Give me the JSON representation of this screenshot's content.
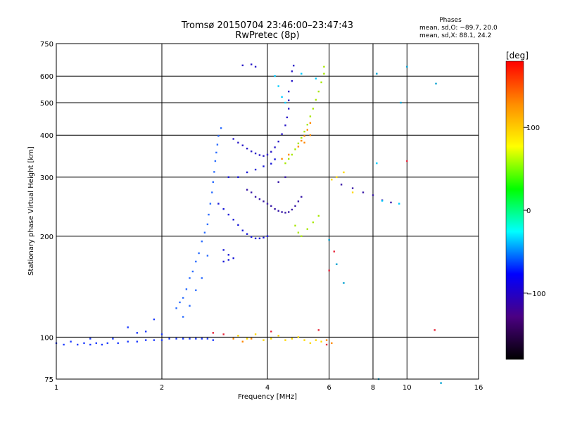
{
  "chart_data": {
    "type": "scatter",
    "title": "Tromsø 20150704 23:46:00–23:47:43",
    "subtitle": "RwPretec (8p)",
    "xlabel": "Frequency [MHz]",
    "ylabel": "Stationary phase Virtual Height [km]",
    "x_scale": "log",
    "y_scale": "log",
    "xlim": [
      1,
      16
    ],
    "ylim": [
      75,
      750
    ],
    "x_ticks": [
      1,
      2,
      4,
      6,
      8,
      10,
      16
    ],
    "y_ticks": [
      75,
      100,
      200,
      300,
      400,
      500,
      600,
      750
    ],
    "x_ticks_labels": [
      "1",
      "2",
      "4",
      "6",
      "8",
      "10",
      "16"
    ],
    "y_ticks_labels": [
      "75",
      "100",
      "200",
      "300",
      "400",
      "500",
      "600",
      "750"
    ],
    "grid": true,
    "stats": {
      "heading": "Phases",
      "line1": "mean, sd,O: −89.7, 20.0",
      "line2": "mean, sd,X:  88.1, 24.2"
    },
    "colorbar": {
      "label": "[deg]",
      "range": [
        -180,
        180
      ],
      "ticks": [
        100,
        0,
        -100
      ],
      "tick_labels": [
        "100",
        "0",
        "−100"
      ],
      "colors": [
        "#ff0000",
        "#ff8c00",
        "#ffff00",
        "#00ff00",
        "#00ffff",
        "#0000ff",
        "#4b0082",
        "#000000"
      ]
    },
    "series": [
      {
        "color": "#1e3cff",
        "points": [
          [
            1.0,
            96
          ],
          [
            1.05,
            95
          ],
          [
            1.1,
            97
          ],
          [
            1.15,
            95
          ],
          [
            1.2,
            96
          ],
          [
            1.25,
            95
          ],
          [
            1.3,
            96
          ],
          [
            1.35,
            95
          ],
          [
            1.4,
            96
          ],
          [
            1.5,
            96
          ],
          [
            1.6,
            97
          ],
          [
            1.7,
            97
          ],
          [
            1.8,
            98
          ],
          [
            1.9,
            98
          ],
          [
            2.0,
            98
          ],
          [
            2.1,
            99
          ],
          [
            2.2,
            99
          ],
          [
            2.3,
            99
          ],
          [
            2.4,
            99
          ],
          [
            2.5,
            99
          ],
          [
            2.6,
            99
          ],
          [
            2.7,
            99
          ],
          [
            2.8,
            98
          ],
          [
            1.25,
            99
          ],
          [
            1.45,
            99
          ],
          [
            1.6,
            107
          ],
          [
            1.7,
            103
          ],
          [
            1.8,
            104
          ],
          [
            1.9,
            113
          ],
          [
            2.0,
            102
          ]
        ]
      },
      {
        "color": "#2a6cff",
        "points": [
          [
            2.2,
            122
          ],
          [
            2.25,
            127
          ],
          [
            2.3,
            131
          ],
          [
            2.35,
            139
          ],
          [
            2.4,
            150
          ],
          [
            2.45,
            157
          ],
          [
            2.5,
            168
          ],
          [
            2.55,
            178
          ],
          [
            2.6,
            193
          ],
          [
            2.65,
            205
          ],
          [
            2.7,
            217
          ],
          [
            2.72,
            232
          ],
          [
            2.75,
            250
          ],
          [
            2.78,
            270
          ],
          [
            2.8,
            290
          ],
          [
            2.82,
            311
          ],
          [
            2.84,
            335
          ],
          [
            2.86,
            355
          ],
          [
            2.88,
            375
          ],
          [
            2.9,
            398
          ],
          [
            2.95,
            420
          ],
          [
            2.3,
            115
          ],
          [
            2.4,
            124
          ],
          [
            2.5,
            138
          ],
          [
            2.6,
            150
          ],
          [
            2.7,
            175
          ]
        ]
      },
      {
        "color": "#1818d8",
        "points": [
          [
            2.9,
            250
          ],
          [
            3.0,
            241
          ],
          [
            3.1,
            232
          ],
          [
            3.2,
            224
          ],
          [
            3.3,
            216
          ],
          [
            3.4,
            208
          ],
          [
            3.5,
            203
          ],
          [
            3.6,
            199
          ],
          [
            3.7,
            197
          ],
          [
            3.8,
            197
          ],
          [
            3.9,
            198
          ],
          [
            4.0,
            200
          ],
          [
            3.0,
            182
          ],
          [
            3.1,
            176
          ],
          [
            3.2,
            172
          ],
          [
            3.0,
            168
          ],
          [
            3.1,
            170
          ],
          [
            3.1,
            300
          ],
          [
            3.3,
            300
          ],
          [
            3.5,
            310
          ],
          [
            3.7,
            316
          ],
          [
            3.9,
            323
          ],
          [
            4.1,
            329
          ],
          [
            4.2,
            339
          ]
        ]
      },
      {
        "color": "#2a1ac8",
        "points": [
          [
            3.2,
            390
          ],
          [
            3.3,
            380
          ],
          [
            3.4,
            373
          ],
          [
            3.5,
            365
          ],
          [
            3.6,
            358
          ],
          [
            3.7,
            353
          ],
          [
            3.8,
            349
          ],
          [
            3.9,
            347
          ],
          [
            4.0,
            350
          ],
          [
            4.1,
            357
          ],
          [
            4.2,
            368
          ],
          [
            4.3,
            383
          ],
          [
            4.4,
            403
          ],
          [
            4.5,
            428
          ],
          [
            4.55,
            452
          ],
          [
            4.6,
            480
          ],
          [
            4.6,
            508
          ],
          [
            4.6,
            540
          ],
          [
            4.7,
            580
          ],
          [
            4.7,
            620
          ],
          [
            4.75,
            645
          ],
          [
            3.6,
            650
          ],
          [
            3.7,
            640
          ],
          [
            3.4,
            646
          ]
        ]
      },
      {
        "color": "#3a1aa8",
        "points": [
          [
            3.5,
            275
          ],
          [
            3.6,
            270
          ],
          [
            3.7,
            262
          ],
          [
            3.8,
            258
          ],
          [
            3.9,
            254
          ],
          [
            4.0,
            250
          ],
          [
            4.1,
            246
          ],
          [
            4.2,
            241
          ],
          [
            4.3,
            238
          ],
          [
            4.4,
            236
          ],
          [
            4.5,
            235
          ],
          [
            4.6,
            236
          ],
          [
            4.7,
            240
          ],
          [
            4.8,
            246
          ],
          [
            4.9,
            254
          ],
          [
            5.0,
            262
          ],
          [
            4.3,
            290
          ],
          [
            4.5,
            300
          ],
          [
            6.5,
            285
          ],
          [
            7.0,
            278
          ],
          [
            7.5,
            270
          ],
          [
            8.0,
            265
          ],
          [
            8.5,
            256
          ],
          [
            9.0,
            252
          ]
        ]
      },
      {
        "color": "#a8e800",
        "points": [
          [
            4.5,
            330
          ],
          [
            4.6,
            340
          ],
          [
            4.7,
            350
          ],
          [
            4.8,
            363
          ],
          [
            4.9,
            378
          ],
          [
            5.0,
            393
          ],
          [
            5.1,
            410
          ],
          [
            5.2,
            430
          ],
          [
            5.3,
            455
          ],
          [
            5.4,
            480
          ],
          [
            5.5,
            510
          ],
          [
            5.6,
            540
          ],
          [
            5.7,
            575
          ],
          [
            5.8,
            610
          ],
          [
            5.8,
            640
          ],
          [
            4.8,
            215
          ],
          [
            4.9,
            205
          ],
          [
            5.0,
            200
          ],
          [
            5.2,
            210
          ],
          [
            5.4,
            220
          ],
          [
            5.6,
            230
          ]
        ]
      },
      {
        "color": "#ff8800",
        "points": [
          [
            4.9,
            370
          ],
          [
            5.0,
            385
          ],
          [
            5.1,
            398
          ],
          [
            5.2,
            415
          ],
          [
            5.3,
            435
          ],
          [
            5.1,
            380
          ],
          [
            5.3,
            400
          ],
          [
            4.6,
            350
          ],
          [
            4.4,
            340
          ],
          [
            3.2,
            99
          ],
          [
            3.4,
            97
          ],
          [
            3.6,
            99
          ],
          [
            5.9,
            98
          ],
          [
            6.1,
            96
          ]
        ]
      },
      {
        "color": "#ffd800",
        "points": [
          [
            3.3,
            101
          ],
          [
            3.5,
            99
          ],
          [
            3.7,
            102
          ],
          [
            3.9,
            98
          ],
          [
            4.1,
            99
          ],
          [
            4.3,
            101
          ],
          [
            4.5,
            98
          ],
          [
            4.7,
            99
          ],
          [
            4.9,
            100
          ],
          [
            5.1,
            98
          ],
          [
            5.3,
            96
          ],
          [
            5.5,
            98
          ],
          [
            5.7,
            97
          ],
          [
            6.1,
            295
          ],
          [
            6.3,
            300
          ],
          [
            6.6,
            310
          ],
          [
            7.0,
            270
          ]
        ]
      },
      {
        "color": "#00ccff",
        "points": [
          [
            4.2,
            600
          ],
          [
            4.3,
            560
          ],
          [
            4.4,
            520
          ],
          [
            4.5,
            500
          ],
          [
            5.0,
            610
          ],
          [
            5.5,
            590
          ],
          [
            8.2,
            330
          ],
          [
            8.5,
            255
          ],
          [
            9.5,
            250
          ]
        ]
      },
      {
        "color": "#e8283c",
        "points": [
          [
            2.8,
            103
          ],
          [
            3.0,
            102
          ],
          [
            4.1,
            104
          ],
          [
            5.6,
            105
          ],
          [
            6.0,
            158
          ],
          [
            6.2,
            180
          ],
          [
            10.0,
            335
          ],
          [
            12.0,
            105
          ],
          [
            5.9,
            95
          ]
        ]
      },
      {
        "color": "#00a0d0",
        "points": [
          [
            6.0,
            195
          ],
          [
            6.3,
            165
          ],
          [
            6.6,
            145
          ],
          [
            8.2,
            610
          ],
          [
            9.6,
            500
          ],
          [
            10.0,
            640
          ],
          [
            12.1,
            570
          ],
          [
            12.5,
            73
          ],
          [
            8.3,
            75
          ]
        ]
      }
    ]
  }
}
